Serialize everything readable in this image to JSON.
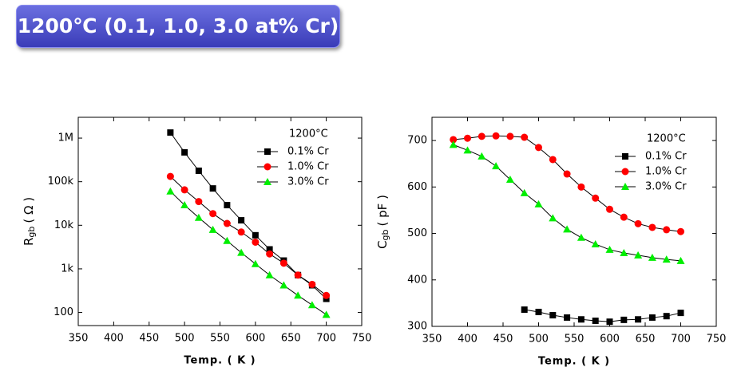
{
  "header": {
    "title": "1200℃ (0.1, 1.0, 3.0 at% Cr)"
  },
  "chart_data": [
    {
      "type": "line",
      "yscale": "log",
      "xlabel": "Temp. ( K )",
      "ylabel": "R",
      "ylabel_sub": "gb",
      "ylabel_unit": "( Ω )",
      "legend_title": "1200°C",
      "xlim": [
        350,
        750
      ],
      "xticks": [
        350,
        400,
        450,
        500,
        550,
        600,
        650,
        700,
        750
      ],
      "ylim": [
        50,
        3000000
      ],
      "yticks": [
        100,
        {
          "value": 1000,
          "label": "1k"
        },
        {
          "value": 10000,
          "label": "10k"
        },
        {
          "value": 100000,
          "label": "100k"
        },
        {
          "value": 1000000,
          "label": "1M"
        }
      ],
      "series": [
        {
          "name": "0.1% Cr",
          "color": "#000000",
          "marker": "square",
          "x": [
            480,
            500,
            520,
            540,
            560,
            580,
            600,
            620,
            640,
            660,
            680,
            700
          ],
          "values": [
            1340000,
            470000,
            178000,
            70000,
            29000,
            13000,
            5900,
            2800,
            1550,
            720,
            420,
            205
          ]
        },
        {
          "name": "1.0% Cr",
          "color": "#ff0000",
          "marker": "circle",
          "x": [
            480,
            500,
            520,
            540,
            560,
            580,
            600,
            620,
            640,
            660,
            680,
            700
          ],
          "values": [
            132000,
            65000,
            35000,
            18500,
            11000,
            7000,
            4100,
            2200,
            1350,
            720,
            440,
            245
          ]
        },
        {
          "name": "3.0% Cr",
          "color": "#00ee00",
          "marker": "triangle",
          "x": [
            480,
            500,
            520,
            540,
            560,
            580,
            600,
            620,
            640,
            660,
            680,
            700
          ],
          "values": [
            60000,
            29000,
            15000,
            7900,
            4400,
            2350,
            1300,
            720,
            420,
            245,
            148,
            89
          ]
        }
      ]
    },
    {
      "type": "line",
      "yscale": "linear",
      "xlabel": "Temp. ( K )",
      "ylabel": "C",
      "ylabel_sub": "gb",
      "ylabel_unit": "( pF )",
      "legend_title": "1200°C",
      "xlim": [
        350,
        750
      ],
      "xticks": [
        350,
        400,
        450,
        500,
        550,
        600,
        650,
        700,
        750
      ],
      "ylim": [
        300,
        750
      ],
      "yticks": [
        300,
        400,
        500,
        600,
        700
      ],
      "series": [
        {
          "name": "0.1% Cr",
          "color": "#000000",
          "marker": "square",
          "x": [
            480,
            500,
            520,
            540,
            560,
            580,
            600,
            620,
            640,
            660,
            680,
            700
          ],
          "values": [
            336,
            331,
            324,
            319,
            315,
            312,
            310,
            314,
            315,
            319,
            322,
            329
          ]
        },
        {
          "name": "1.0% Cr",
          "color": "#ff0000",
          "marker": "circle",
          "x": [
            380,
            400,
            420,
            440,
            460,
            480,
            500,
            520,
            540,
            560,
            580,
            600,
            620,
            640,
            660,
            680,
            700
          ],
          "values": [
            702,
            705,
            709,
            710,
            709,
            707,
            685,
            659,
            628,
            600,
            576,
            552,
            535,
            521,
            513,
            508,
            504
          ]
        },
        {
          "name": "3.0% Cr",
          "color": "#00ee00",
          "marker": "triangle",
          "x": [
            380,
            400,
            420,
            440,
            460,
            480,
            500,
            520,
            540,
            560,
            580,
            600,
            620,
            640,
            660,
            680,
            700
          ],
          "values": [
            691,
            679,
            666,
            645,
            616,
            587,
            563,
            533,
            509,
            491,
            477,
            465,
            458,
            453,
            448,
            444,
            441
          ]
        }
      ]
    }
  ]
}
